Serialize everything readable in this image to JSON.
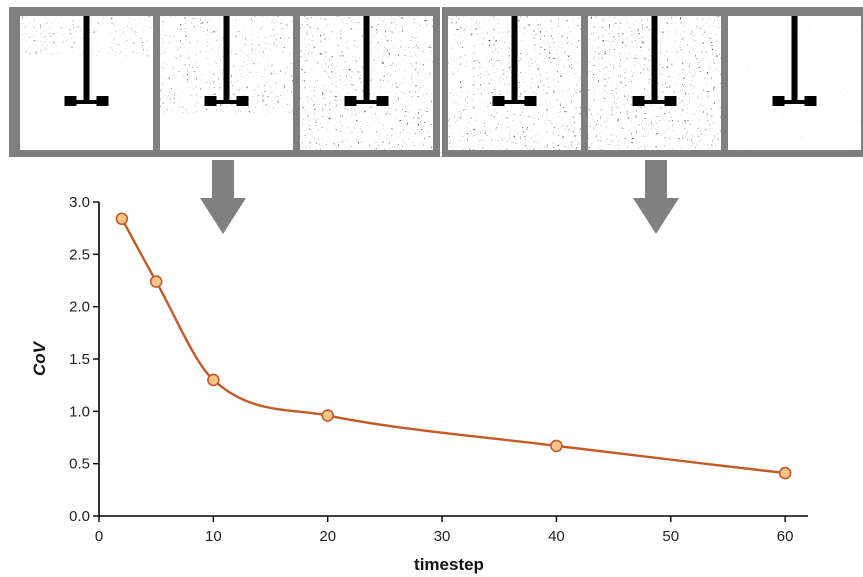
{
  "panels": {
    "groups": [
      {
        "name": "group-left",
        "count": 3
      },
      {
        "name": "group-right",
        "count": 3
      }
    ],
    "frame_color": "#7f7f7f",
    "snapshots": [
      {
        "panel": "snapshot-1",
        "fill_state": "top-partial",
        "density": 0.35
      },
      {
        "panel": "snapshot-2",
        "fill_state": "top-majority",
        "density": 0.55
      },
      {
        "panel": "snapshot-3",
        "fill_state": "full",
        "density": 0.75
      },
      {
        "panel": "snapshot-4",
        "fill_state": "full",
        "density": 0.8
      },
      {
        "panel": "snapshot-5",
        "fill_state": "full",
        "density": 0.8
      },
      {
        "panel": "snapshot-6",
        "fill_state": "full-fine",
        "density": 0.9
      }
    ],
    "arrows": [
      {
        "points_from": "group-left",
        "color": "#808080"
      },
      {
        "points_from": "group-right",
        "color": "#808080"
      }
    ]
  },
  "chart_data": {
    "type": "line",
    "title": "",
    "xlabel": "timestep",
    "ylabel": "CoV",
    "xlim": [
      0,
      62
    ],
    "ylim": [
      0.0,
      3.0
    ],
    "xticks": [
      0,
      10,
      20,
      30,
      40,
      50,
      60
    ],
    "yticks": [
      "0.0",
      "0.5",
      "1.0",
      "1.5",
      "2.0",
      "2.5",
      "3.0"
    ],
    "grid": false,
    "legend": "none",
    "series": [
      {
        "x": [
          2,
          5,
          10,
          20,
          40,
          60
        ],
        "y": [
          2.84,
          2.24,
          1.3,
          0.96,
          0.67,
          0.41
        ],
        "line_color": "#c55a28",
        "marker_fill": "#f7c58a",
        "marker_edge": "#c55a28",
        "smooth": true
      }
    ]
  }
}
